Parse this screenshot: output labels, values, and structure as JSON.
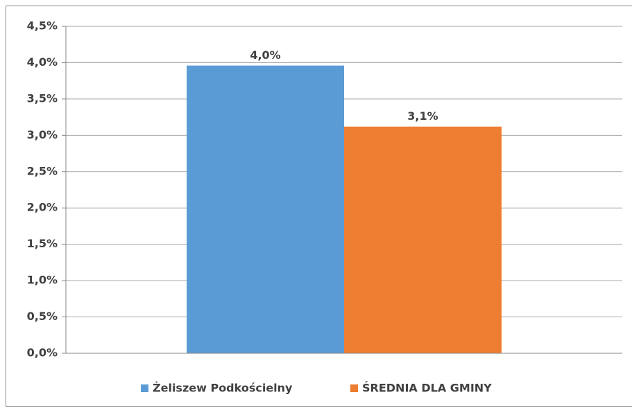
{
  "chart_data": {
    "type": "bar",
    "categories": [
      null
    ],
    "series": [
      {
        "name": "Żeliszew Podkościelny",
        "color": "#5b9bd5",
        "values": [
          3.96
        ],
        "value_labels": [
          "4,0%"
        ]
      },
      {
        "name": "ŚREDNIA DLA GMINY",
        "color": "#ed7d31",
        "values": [
          3.12
        ],
        "value_labels": [
          "3,1%"
        ]
      }
    ],
    "ylim": [
      0,
      4.5
    ],
    "yticks": [
      {
        "value": 0,
        "label": "0,0%"
      },
      {
        "value": 0.5,
        "label": "0,5%"
      },
      {
        "value": 1,
        "label": "1,0%"
      },
      {
        "value": 1.5,
        "label": "1,5%"
      },
      {
        "value": 2,
        "label": "2,0%"
      },
      {
        "value": 2.5,
        "label": "2,5%"
      },
      {
        "value": 3,
        "label": "3,0%"
      },
      {
        "value": 3.5,
        "label": "3,5%"
      },
      {
        "value": 4,
        "label": "4,0%"
      },
      {
        "value": 4.5,
        "label": "4,5%"
      }
    ],
    "grid": true,
    "legend": "bottom"
  }
}
